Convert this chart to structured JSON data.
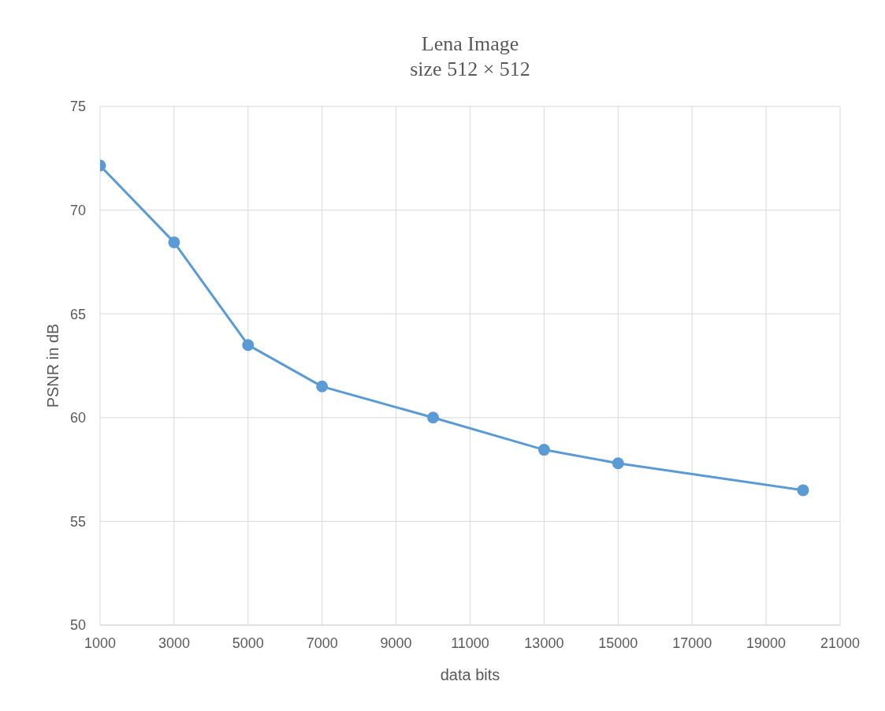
{
  "chart_data": {
    "type": "line",
    "title": "Lena Image",
    "subtitle": "size 512 × 512",
    "xlabel": "data bits",
    "ylabel": "PSNR in dB",
    "x": [
      1000,
      3000,
      5000,
      7000,
      10000,
      13000,
      15000,
      20000
    ],
    "series": [
      {
        "color": "#5b9bd5",
        "values": [
          72.15,
          68.45,
          63.5,
          61.5,
          60,
          58.45,
          57.8,
          56.5
        ]
      }
    ],
    "xlim": [
      1000,
      21000
    ],
    "xticks": [
      1000,
      3000,
      5000,
      7000,
      9000,
      11000,
      13000,
      15000,
      17000,
      19000,
      21000
    ],
    "ylim": [
      50,
      75
    ],
    "yticks": [
      50,
      55,
      60,
      65,
      70,
      75
    ],
    "grid": true,
    "legend": false,
    "marker": "circle",
    "line_style": "solid"
  }
}
